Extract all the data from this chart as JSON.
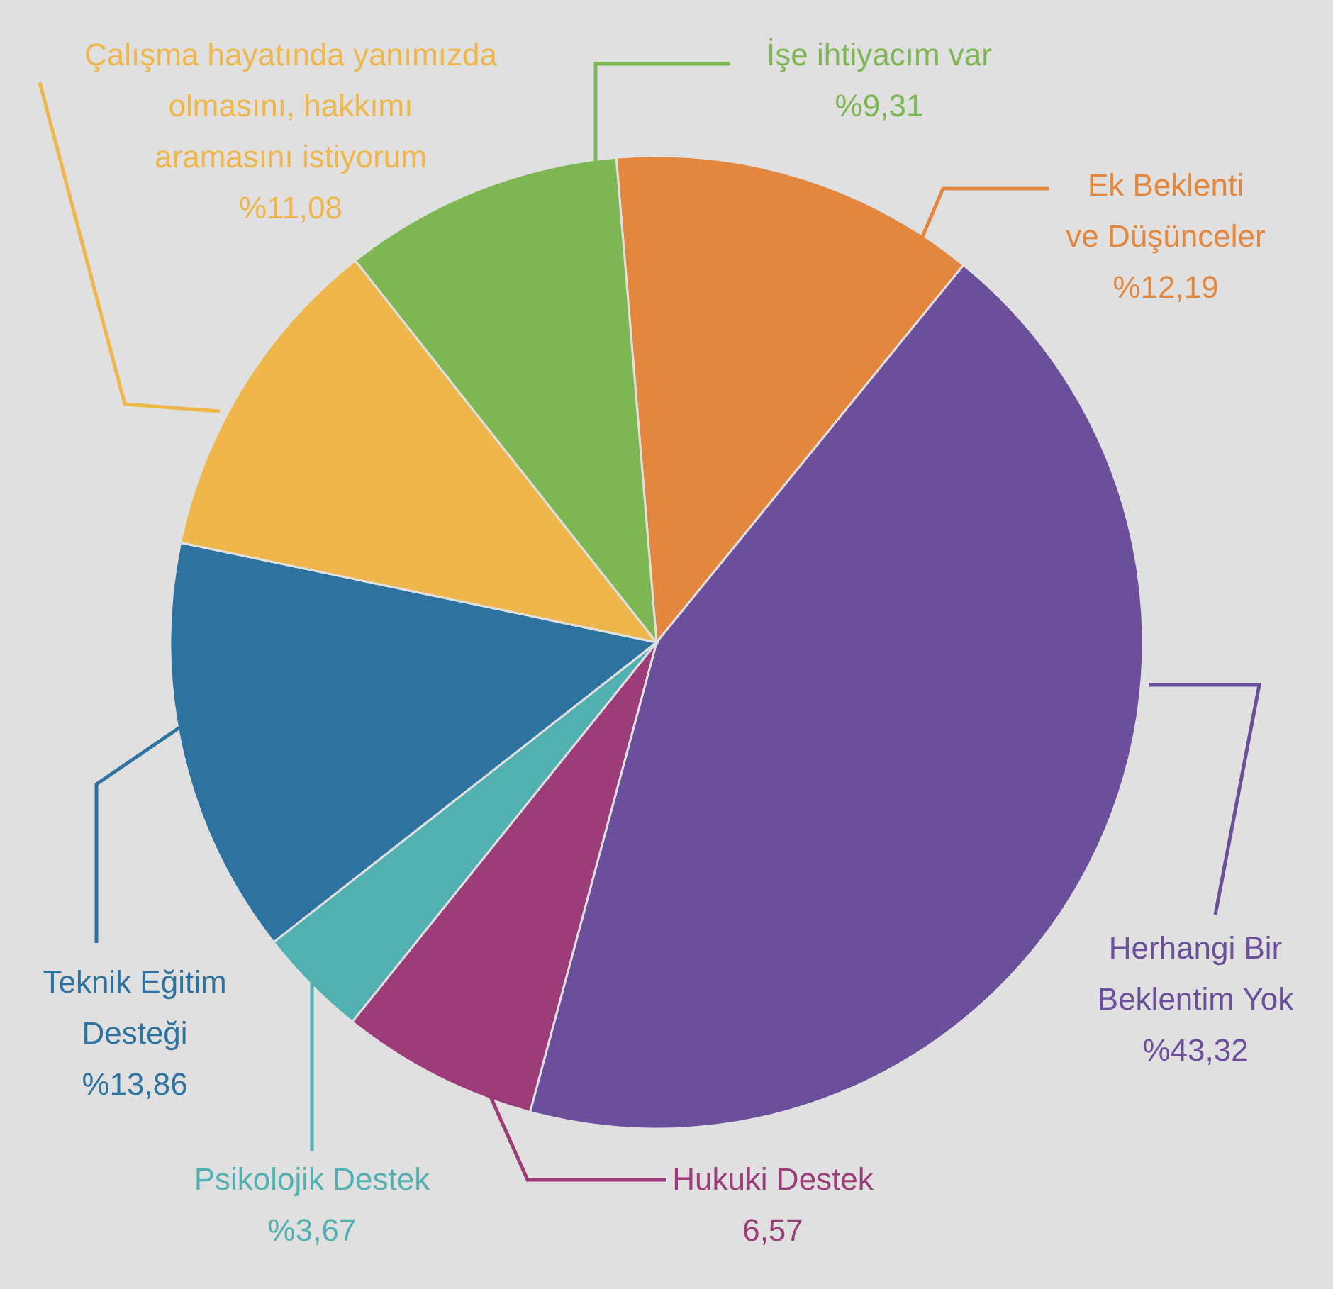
{
  "chart_data": {
    "type": "pie",
    "categories": [
      "Ek Beklenti ve Düşünceler",
      "Herhangi Bir Beklentim Yok",
      "Hukuki Destek",
      "Psikolojik Destek",
      "Teknik Eğitim Desteği",
      "Çalışma hayatında yanımızda olmasını, hakkımı aramasını istiyorum",
      "İşe ihtiyacım var"
    ],
    "values": [
      12.19,
      43.32,
      6.57,
      3.67,
      13.86,
      11.08,
      9.31
    ],
    "value_labels": [
      "%12,19",
      "%43,32",
      "6,57",
      "%3,67",
      "%13,86",
      "%11,08",
      "%9,31"
    ],
    "colors": [
      "#e3873e",
      "#6b4f9b",
      "#9c3c78",
      "#53b0b0",
      "#2e73a0",
      "#eeb64b",
      "#7db653"
    ]
  }
}
